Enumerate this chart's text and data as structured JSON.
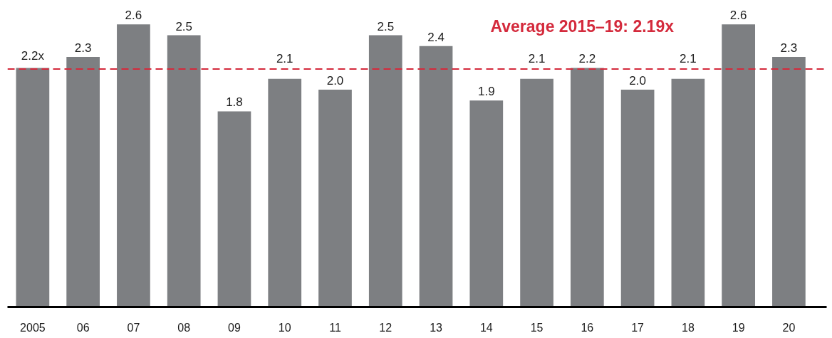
{
  "chart_data": {
    "type": "bar",
    "categories": [
      "2005",
      "06",
      "07",
      "08",
      "09",
      "10",
      "11",
      "12",
      "13",
      "14",
      "15",
      "16",
      "17",
      "18",
      "19",
      "20"
    ],
    "values": [
      2.2,
      2.3,
      2.6,
      2.5,
      1.8,
      2.1,
      2.0,
      2.5,
      2.4,
      1.9,
      2.1,
      2.2,
      2.0,
      2.1,
      2.6,
      2.3
    ],
    "value_labels": [
      "2.2x",
      "2.3",
      "2.6",
      "2.5",
      "1.8",
      "2.1",
      "2.0",
      "2.5",
      "2.4",
      "1.9",
      "2.1",
      "2.2",
      "2.0",
      "2.1",
      "2.6",
      "2.3"
    ],
    "color": "#7d7f82",
    "ref_lines": [
      {
        "axis": "y",
        "value": 2.19,
        "label": "Average 2015–19: 2.19x",
        "color": "#d42a3c",
        "line_style": "dashed"
      }
    ]
  }
}
